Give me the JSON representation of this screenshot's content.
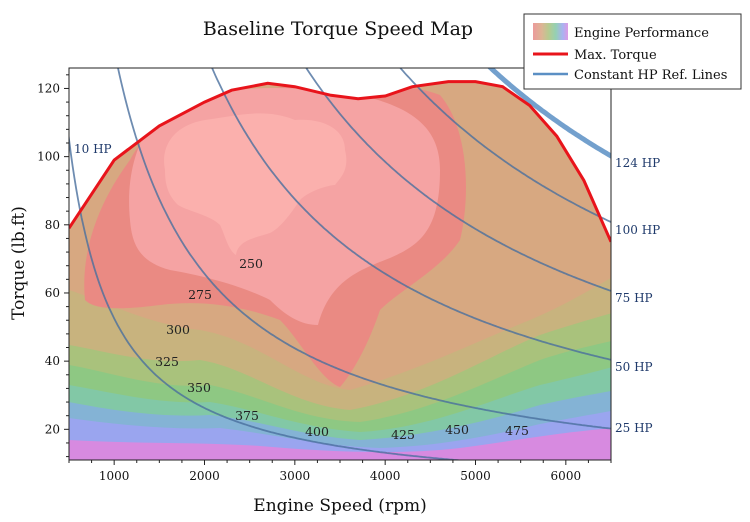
{
  "chart_data": {
    "type": "contour",
    "title": "Baseline Torque Speed Map",
    "xlabel": "Engine Speed (rpm)",
    "ylabel": "Torque (lb.ft)",
    "xlim": [
      500,
      6500
    ],
    "ylim": [
      11,
      126
    ],
    "x_ticks": [
      1000,
      2000,
      3000,
      4000,
      5000,
      6000
    ],
    "y_ticks": [
      20,
      40,
      60,
      80,
      100,
      120
    ],
    "legend": {
      "position": "top-right",
      "entries": [
        "Engine Performance",
        "Max. Torque",
        "Constant HP Ref. Lines"
      ]
    },
    "max_torque": {
      "name": "Max. Torque",
      "color": "#e8141b",
      "x": [
        500,
        1000,
        1500,
        2000,
        2300,
        2700,
        3000,
        3400,
        3700,
        4000,
        4300,
        4700,
        5000,
        5300,
        5600,
        5900,
        6200,
        6500
      ],
      "y": [
        79,
        99,
        109,
        116,
        119.5,
        121.5,
        120.5,
        118,
        117,
        117.8,
        120.5,
        122,
        122,
        120.5,
        115,
        106,
        93,
        75
      ]
    },
    "constant_hp_lines": {
      "name": "Constant HP Ref. Lines",
      "color": "#5b8fc4",
      "values_hp": [
        10,
        25,
        50,
        75,
        100,
        124
      ],
      "labels": [
        "10 HP",
        "25 HP",
        "50 HP",
        "75 HP",
        "100 HP",
        "124 HP"
      ]
    },
    "contour_levels": [
      250,
      275,
      300,
      325,
      350,
      375,
      400,
      425,
      450,
      475
    ],
    "contour_labels": [
      "250",
      "275",
      "300",
      "325",
      "350",
      "375",
      "400",
      "425",
      "450",
      "475"
    ],
    "colors": {
      "bsfc_250": "#f5a3a3",
      "bsfc_275": "#ea8a83",
      "bsfc_300": "#d7a881",
      "bsfc_325": "#c8b37e",
      "bsfc_350": "#a9c27c",
      "bsfc_375": "#8ec883",
      "bsfc_400": "#82c8a6",
      "bsfc_425": "#84b3d5",
      "bsfc_450": "#9aa5ef",
      "bsfc_475": "#d78ae0"
    }
  }
}
